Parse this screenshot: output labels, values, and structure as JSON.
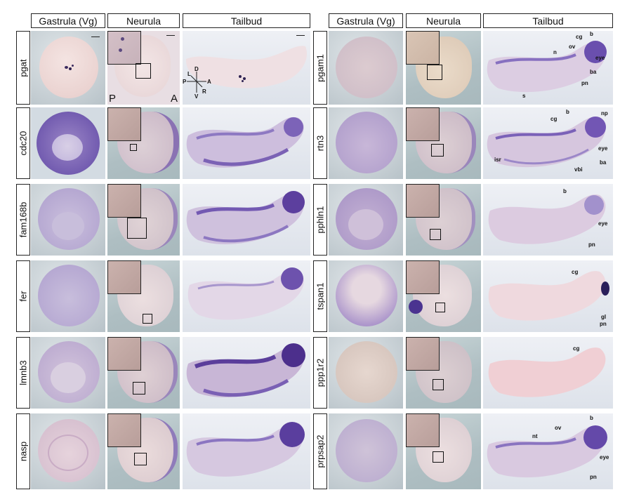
{
  "headers": {
    "left": [
      "Gastrula (Vg)",
      "Neurula",
      "Tailbud"
    ],
    "right": [
      "Gastrula (Vg)",
      "Neurula",
      "Tailbud"
    ]
  },
  "genes": {
    "left": [
      "pgat",
      "cdc20",
      "fam168b",
      "fer",
      "lmnb3",
      "nasp"
    ],
    "right": [
      "pgam1",
      "rtn3",
      "pphln1",
      "tspan1",
      "ppp1r2",
      "prpsap2"
    ]
  },
  "orientation": {
    "P": "P",
    "A": "A",
    "axes": {
      "D": "D",
      "V": "V",
      "L": "L",
      "R": "R",
      "P": "P",
      "A": "A"
    }
  },
  "annotations": {
    "pgam1": [
      "cg",
      "b",
      "ov",
      "n",
      "eye",
      "ba",
      "pn",
      "s"
    ],
    "rtn3": [
      "b",
      "np",
      "cg",
      "eye",
      "isr",
      "ba",
      "vbi"
    ],
    "pphln1": [
      "b",
      "eye",
      "pn"
    ],
    "tspan1": [
      "cg",
      "gl",
      "pn"
    ],
    "ppp1r2": [
      "cg"
    ],
    "prpsap2": [
      "b",
      "nt",
      "ov",
      "eye",
      "pn"
    ]
  }
}
